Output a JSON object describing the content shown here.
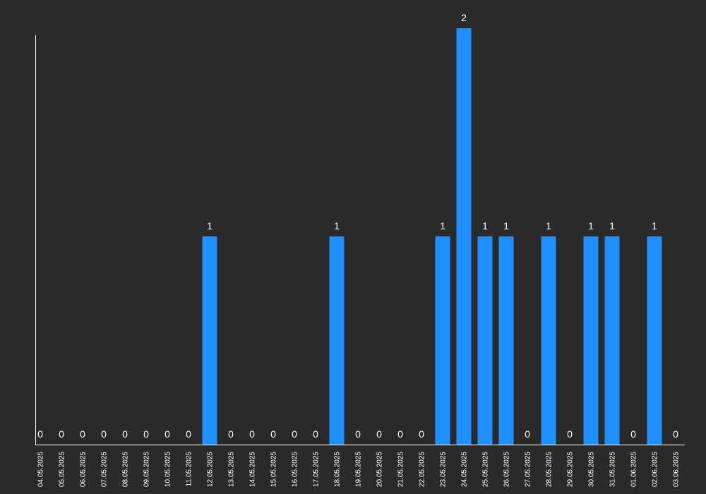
{
  "chart_data": {
    "type": "bar",
    "categories": [
      "04.05.2025",
      "05.05.2025",
      "06.05.2025",
      "07.05.2025",
      "08.05.2025",
      "09.05.2025",
      "10.05.2025",
      "11.05.2025",
      "12.05.2025",
      "13.05.2025",
      "14.05.2025",
      "15.05.2025",
      "16.05.2025",
      "17.05.2025",
      "18.05.2025",
      "19.05.2025",
      "20.05.2025",
      "21.05.2025",
      "22.05.2025",
      "23.05.2025",
      "24.05.2025",
      "25.05.2025",
      "26.05.2025",
      "27.05.2025",
      "28.05.2025",
      "29.05.2025",
      "30.05.2025",
      "31.05.2025",
      "01.06.2025",
      "02.06.2025",
      "03.06.2025"
    ],
    "values": [
      0,
      0,
      0,
      0,
      0,
      0,
      0,
      0,
      1,
      0,
      0,
      0,
      0,
      0,
      1,
      0,
      0,
      0,
      0,
      1,
      2,
      1,
      1,
      0,
      1,
      0,
      1,
      1,
      0,
      1,
      0
    ],
    "ylim": [
      0,
      2
    ],
    "grid": false,
    "legend": "none",
    "colors": {
      "background": "#2a2a2a",
      "bar": "#1e90ff",
      "axis": "#ffffff",
      "text": "#ffffff"
    }
  }
}
